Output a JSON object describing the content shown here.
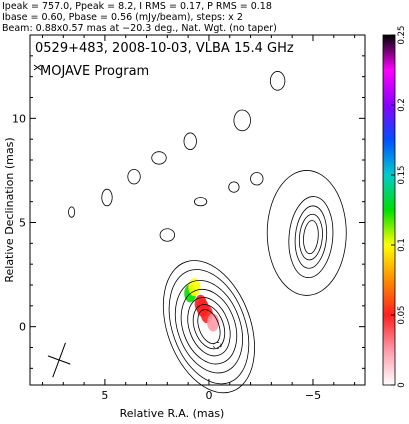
{
  "header": {
    "line1": "Ipeak = 757.0, Ppeak = 8.2, I RMS = 0.17, P RMS = 0.18",
    "line2": "Ibase = 0.60, Pbase = 0.56 (mJy/beam), steps: x 2",
    "line3": "Beam: 0.88x0.57 mas at −20.3 deg., Nat. Wgt. (no taper)"
  },
  "chart_data": {
    "type": "heatmap",
    "title": "0529+483, 2008-10-03, VLBA 15.4 GHz",
    "subtitle": "MOJAVE Program",
    "xlabel": "Relative R.A. (mas)",
    "ylabel": "Relative Declination (mas)",
    "xlim": [
      8.6,
      -7.5
    ],
    "ylim": [
      -2.8,
      14.0
    ],
    "x_ticks": [
      5,
      0,
      -5
    ],
    "x_tick_labels": [
      "5",
      "0",
      "−5"
    ],
    "y_ticks": [
      0,
      5,
      10
    ],
    "y_tick_labels": [
      "0",
      "5",
      "10"
    ],
    "colorbar": {
      "min": 0,
      "max": 0.25,
      "ticks": [
        0,
        0.05,
        0.1,
        0.15,
        0.2,
        0.25
      ],
      "tick_labels": [
        "0",
        "0.05",
        "0.1",
        "0.15",
        "0.2",
        "0.25"
      ],
      "colors": [
        "#ffffff",
        "#ff9aa8",
        "#ff2020",
        "#ff8c00",
        "#ffff00",
        "#00dd00",
        "#00cccc",
        "#0050ff",
        "#8800ff",
        "#ff00ff",
        "#000000"
      ]
    },
    "core_contours": {
      "center": [
        0.0,
        0.0
      ],
      "radii": [
        [
          0.48,
          0.85
        ],
        [
          0.7,
          1.1
        ],
        [
          0.95,
          1.45
        ],
        [
          1.25,
          1.85
        ],
        [
          1.5,
          2.3
        ],
        [
          1.75,
          2.85
        ],
        [
          2.0,
          3.3
        ]
      ],
      "angle_deg": -20
    },
    "west_contours": {
      "center": [
        -4.9,
        4.3
      ],
      "radii": [
        [
          0.35,
          0.8
        ],
        [
          0.55,
          1.1
        ],
        [
          0.75,
          1.5
        ],
        [
          1.05,
          1.95
        ]
      ],
      "angle_deg": 5
    },
    "colored_pixels": [
      {
        "x": 0.3,
        "y": 0.9,
        "value": 0.04
      },
      {
        "x": 0.1,
        "y": 0.6,
        "value": 0.05
      },
      {
        "x": -0.2,
        "y": 0.2,
        "value": 0.03
      },
      {
        "x": 0.4,
        "y": 1.1,
        "value": 0.06
      },
      {
        "x": 0.9,
        "y": 1.6,
        "value": 0.12
      },
      {
        "x": 0.7,
        "y": 1.9,
        "value": 0.1
      }
    ],
    "beam": {
      "major": 0.88,
      "minor": 0.57,
      "pa": -20.3,
      "x": 7.2,
      "y": -1.6
    }
  }
}
